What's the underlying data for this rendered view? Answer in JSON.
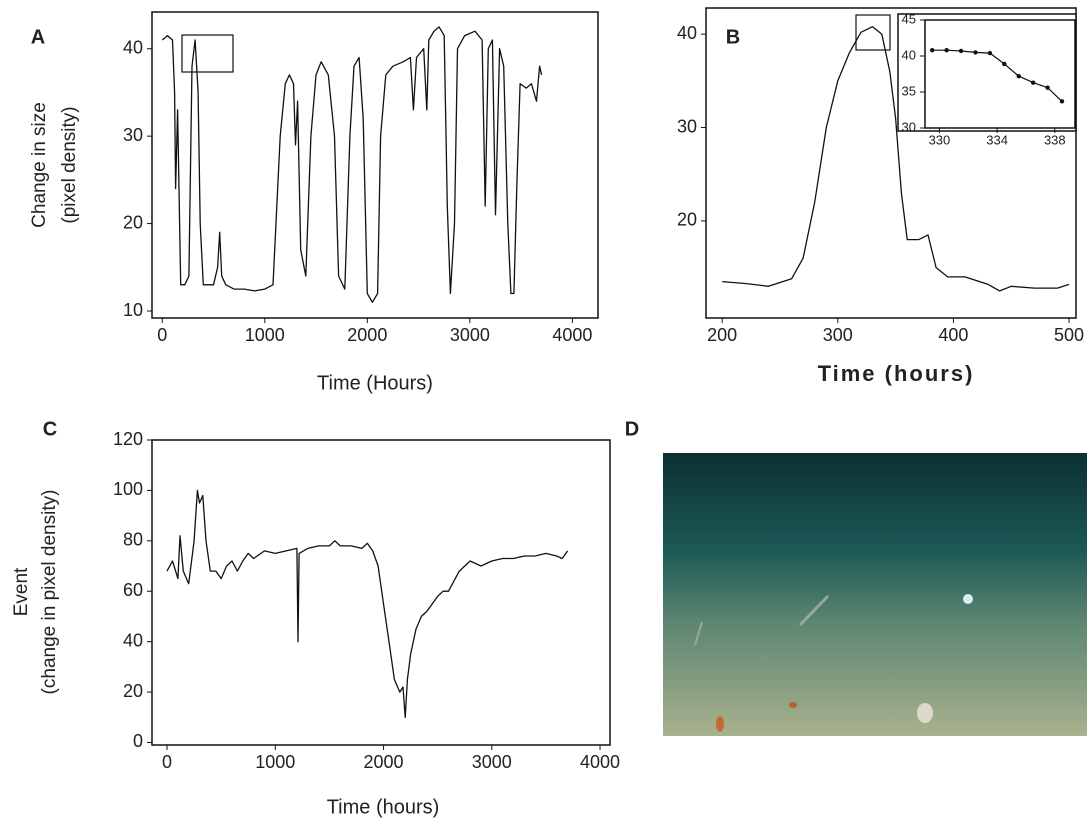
{
  "chart_data": [
    {
      "type": "line",
      "panel": "A",
      "xlabel": "Time (Hours)",
      "ylabel": [
        "Change in size",
        "(pixel density)"
      ],
      "xlim": [
        -100,
        4250
      ],
      "ylim": [
        9.2,
        44.2
      ],
      "xticks": [
        0,
        1000,
        2000,
        3000,
        4000
      ],
      "yticks": [
        10,
        20,
        30,
        40
      ],
      "color": "#111111",
      "x": [
        0,
        50,
        100,
        120,
        130,
        150,
        180,
        220,
        260,
        290,
        320,
        350,
        370,
        400,
        450,
        500,
        540,
        560,
        580,
        620,
        700,
        800,
        900,
        1000,
        1080,
        1150,
        1200,
        1240,
        1280,
        1300,
        1320,
        1350,
        1400,
        1450,
        1500,
        1550,
        1620,
        1680,
        1720,
        1780,
        1830,
        1870,
        1920,
        1960,
        2000,
        2050,
        2100,
        2130,
        2180,
        2250,
        2350,
        2420,
        2450,
        2480,
        2550,
        2580,
        2600,
        2650,
        2700,
        2750,
        2780,
        2810,
        2850,
        2880,
        2950,
        3050,
        3120,
        3150,
        3180,
        3220,
        3250,
        3290,
        3330,
        3370,
        3400,
        3430,
        3460,
        3490,
        3550,
        3600,
        3650,
        3680,
        3700
      ],
      "values": [
        41,
        41.5,
        41,
        35,
        24,
        33,
        13,
        13,
        14,
        38,
        41,
        35,
        20,
        13,
        13,
        13,
        15,
        19,
        14,
        13,
        12.5,
        12.5,
        12.3,
        12.5,
        13,
        30,
        36,
        37,
        36,
        29,
        34,
        17,
        14,
        30,
        37,
        38.5,
        37,
        30,
        14,
        12.5,
        30,
        38,
        39,
        32,
        12,
        11,
        12,
        30,
        37,
        38,
        38.5,
        39,
        33,
        39,
        40,
        33,
        41,
        42,
        42.5,
        41.5,
        22,
        12,
        20,
        40,
        41.5,
        42,
        41,
        22,
        40,
        41,
        21,
        40,
        38,
        20,
        12,
        12,
        25,
        36,
        35.5,
        36,
        34,
        38,
        37
      ]
    },
    {
      "type": "line",
      "panel": "B",
      "xlabel": "Time (hours)",
      "xlim": [
        186,
        506
      ],
      "ylim": [
        9.6,
        42.8
      ],
      "xticks": [
        200,
        300,
        400,
        500
      ],
      "yticks": [
        20,
        30,
        40
      ],
      "color": "#111111",
      "x": [
        200,
        220,
        240,
        260,
        270,
        280,
        290,
        300,
        310,
        320,
        330,
        338,
        345,
        350,
        355,
        360,
        370,
        378,
        385,
        395,
        410,
        430,
        440,
        450,
        470,
        490,
        500
      ],
      "values": [
        13.5,
        13.3,
        13,
        13.8,
        16,
        22,
        30,
        35,
        38,
        40.2,
        40.8,
        40,
        36,
        31,
        23,
        18,
        18,
        18.5,
        15,
        14,
        14,
        13.2,
        12.5,
        13,
        12.8,
        12.8,
        13.2
      ],
      "inset": {
        "xlim": [
          329,
          339.4
        ],
        "ylim": [
          30,
          45
        ],
        "xticks": [
          330,
          334,
          338
        ],
        "yticks": [
          30,
          35,
          40,
          45
        ],
        "x": [
          329.5,
          330.5,
          331.5,
          332.5,
          333.5,
          334.5,
          335.5,
          336.5,
          337.5,
          338.5
        ],
        "values": [
          40.8,
          40.8,
          40.7,
          40.5,
          40.4,
          38.9,
          37.2,
          36.3,
          35.6,
          33.7
        ]
      }
    },
    {
      "type": "line",
      "panel": "C",
      "xlabel": "Time (hours)",
      "ylabel": [
        "Event",
        "(change in pixel density)"
      ],
      "xlim": [
        -139,
        4092
      ],
      "ylim": [
        -1,
        120
      ],
      "xticks": [
        0,
        1000,
        2000,
        3000,
        4000
      ],
      "yticks": [
        0,
        20,
        40,
        60,
        80,
        100,
        120
      ],
      "color": "#111111",
      "x": [
        0,
        50,
        100,
        120,
        150,
        200,
        250,
        280,
        300,
        330,
        360,
        400,
        450,
        500,
        550,
        600,
        650,
        700,
        750,
        800,
        900,
        1000,
        1100,
        1200,
        1210,
        1220,
        1300,
        1400,
        1500,
        1550,
        1600,
        1700,
        1800,
        1850,
        1900,
        1950,
        2000,
        2050,
        2100,
        2150,
        2180,
        2200,
        2220,
        2250,
        2300,
        2350,
        2400,
        2450,
        2500,
        2550,
        2600,
        2700,
        2800,
        2900,
        3000,
        3100,
        3200,
        3300,
        3400,
        3500,
        3600,
        3650,
        3700
      ],
      "values": [
        68,
        72,
        65,
        82,
        68,
        63,
        80,
        100,
        95,
        98,
        80,
        68,
        68,
        65,
        70,
        72,
        68,
        72,
        75,
        73,
        76,
        75,
        76,
        77,
        40,
        75,
        77,
        78,
        78,
        80,
        78,
        78,
        77,
        79,
        76,
        70,
        55,
        40,
        25,
        20,
        22,
        10,
        25,
        35,
        45,
        50,
        52,
        55,
        58,
        60,
        60,
        68,
        72,
        70,
        72,
        73,
        73,
        74,
        74,
        75,
        74,
        73,
        76
      ]
    },
    {
      "type": "image",
      "panel": "D"
    }
  ]
}
